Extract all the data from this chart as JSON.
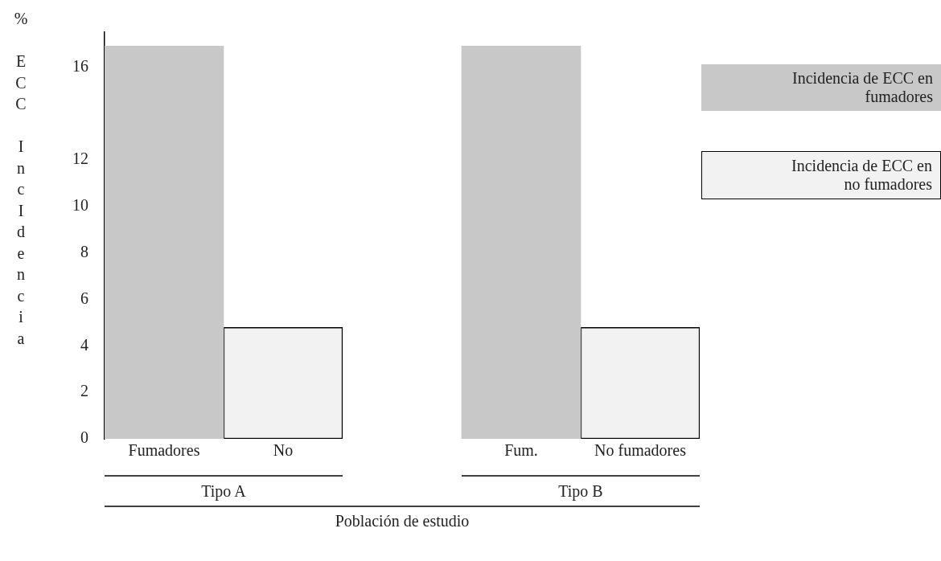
{
  "chart_data": {
    "type": "bar",
    "stacked": true,
    "categories": [
      "Fumadores",
      "No",
      null,
      "Fum.",
      "No fumadores"
    ],
    "series": [
      {
        "name": "Incidencia de ECC en fumadores",
        "color": "#c8c8c8",
        "values": [
          16.9,
          null,
          null,
          16.9,
          null
        ]
      },
      {
        "name": "Incidencia de ECC en no fumadores",
        "color": "#f2f2f2",
        "values": [
          null,
          4.8,
          null,
          null,
          4.8
        ]
      }
    ],
    "ylim": [
      0,
      17.5
    ],
    "yticks": [
      0,
      2,
      4,
      6,
      8,
      10,
      12,
      16
    ],
    "ylabel": "% ECC IncIdencia",
    "xlabel": "Población de estudio",
    "annotations": [
      "Tipo A",
      "Tipo B"
    ],
    "grid": false,
    "legend": "right"
  }
}
